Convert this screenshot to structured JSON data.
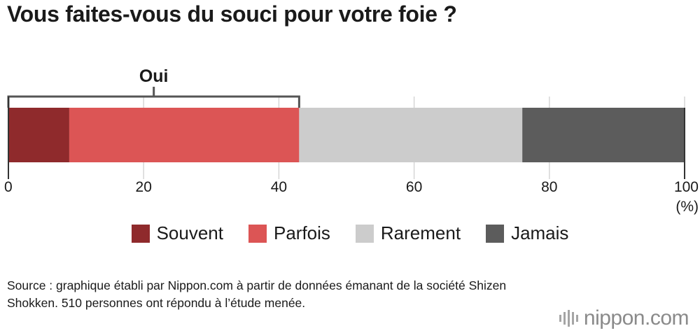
{
  "title": "Vous faites-vous du souci pour votre foie ?",
  "chart_data": {
    "type": "bar",
    "orientation": "horizontal-stacked",
    "series": [
      {
        "name": "Souvent",
        "value": 9,
        "color": "#8f2a2c"
      },
      {
        "name": "Parfois",
        "value": 34,
        "color": "#dc5555"
      },
      {
        "name": "Rarement",
        "value": 33,
        "color": "#cccccc"
      },
      {
        "name": "Jamais",
        "value": 24,
        "color": "#5c5c5c"
      }
    ],
    "xlim": [
      0,
      100
    ],
    "xticks": [
      "0",
      "20",
      "40",
      "60",
      "80",
      "100"
    ],
    "xunit": "(%)",
    "bracket": {
      "label": "Oui",
      "from": 0,
      "to": 43
    },
    "grid": true,
    "legend_position": "bottom"
  },
  "source": "Source : graphique établi par Nippon.com à partir de données émanant de la société Shizen Shokken. 510 personnes ont répondu à l’étude menée.",
  "logo": {
    "text": "nippon.com",
    "icon": "nippon-sound-bars-icon"
  }
}
